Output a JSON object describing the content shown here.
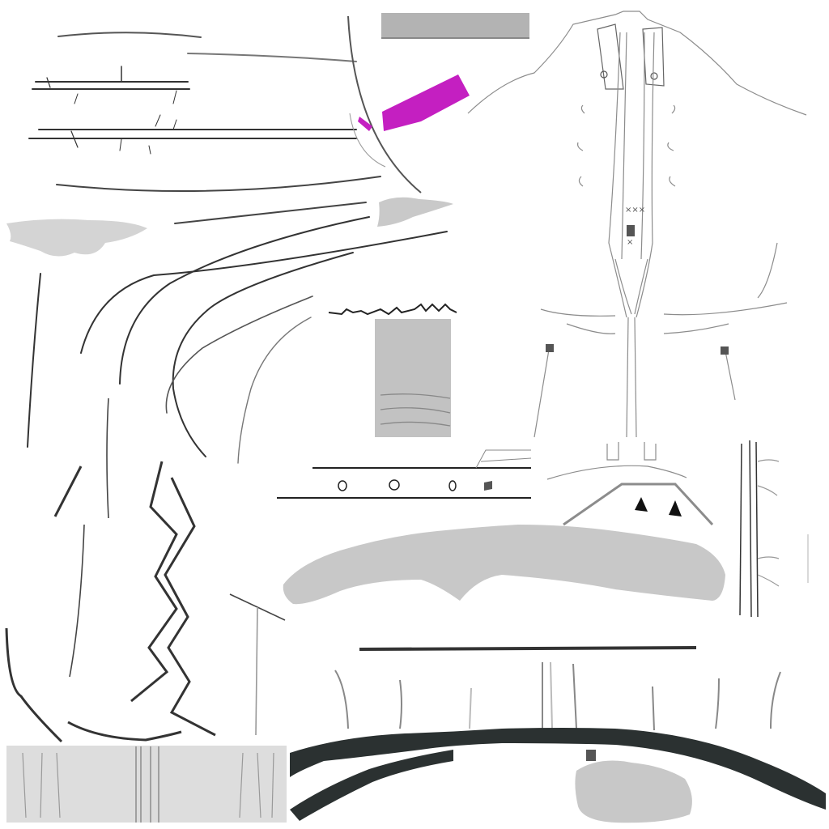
{
  "colors": {
    "background": "#ffffff",
    "thin_line": "#333333",
    "light_line": "#9a9a9a",
    "pale_line": "#c4c4c4",
    "gray_fill": "#d4d4d4",
    "panel_fill": "#bdbdbd",
    "highlight": "#c41fc1",
    "dark_band": "#2b3131",
    "swatch_bar": "#b3b3b3"
  },
  "icons": {
    "marker_shape": "triangle",
    "button_shape": "circle"
  }
}
